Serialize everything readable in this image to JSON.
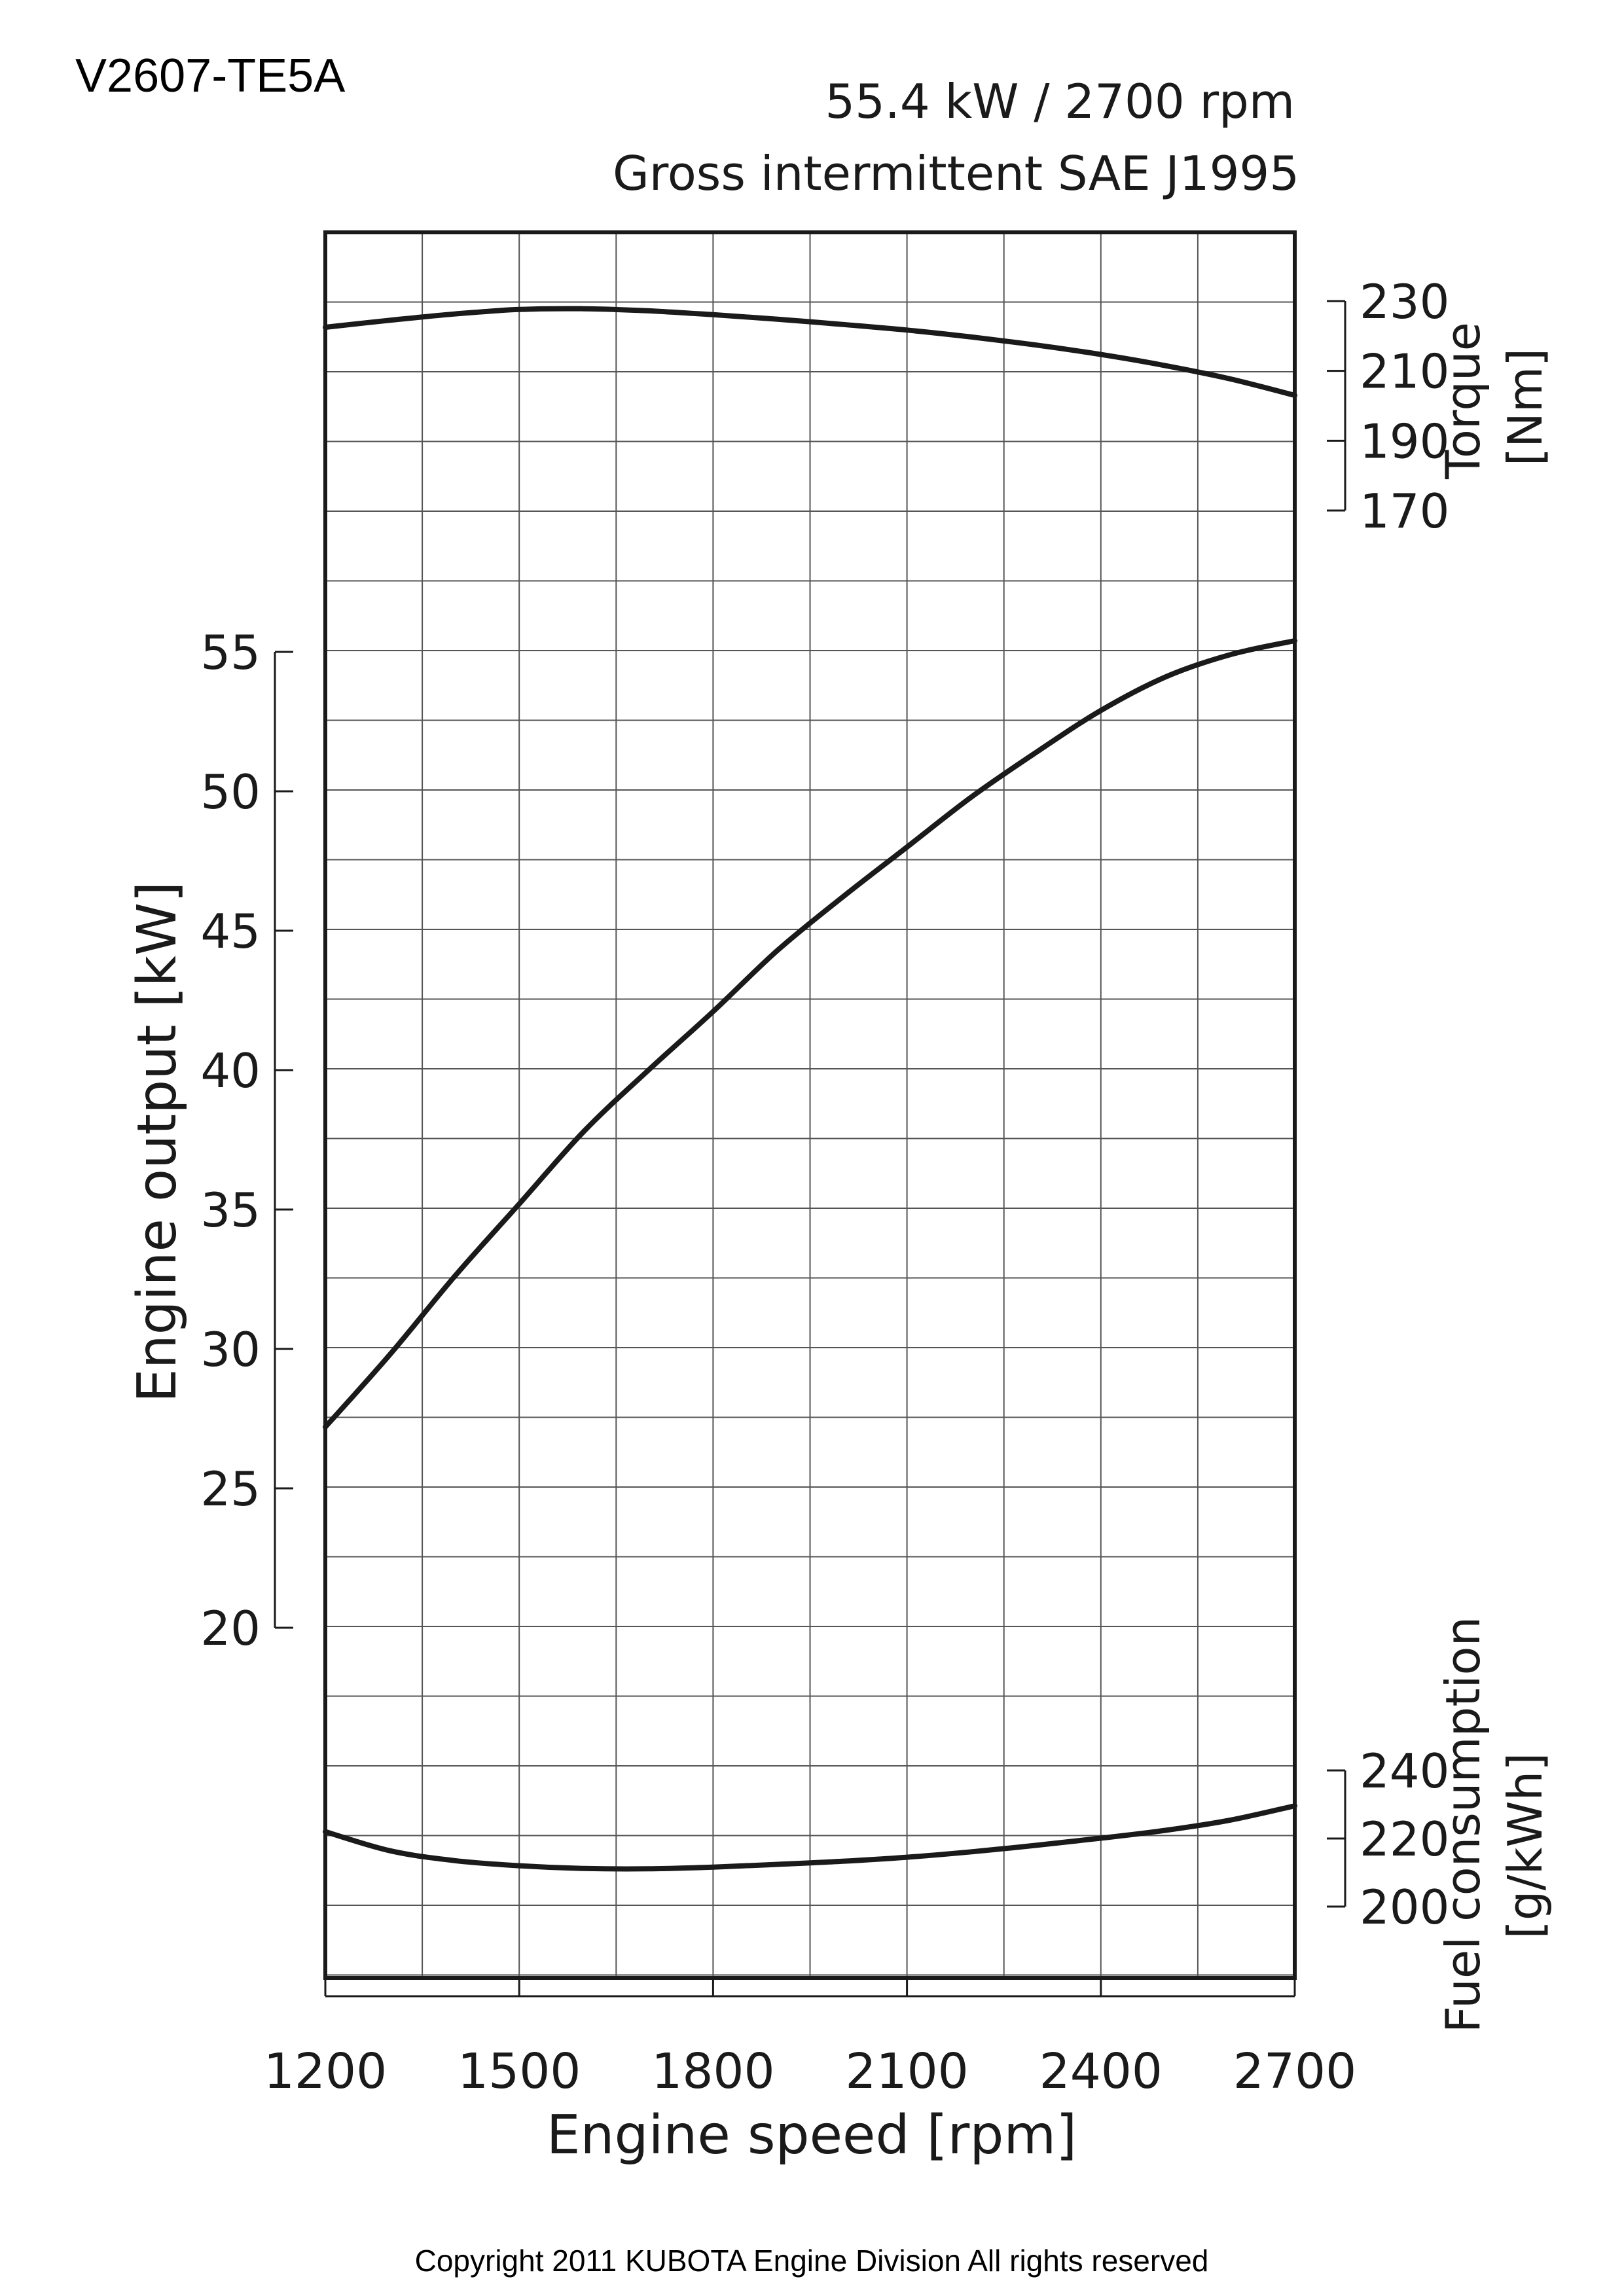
{
  "header": {
    "model": "V2607-TE5A",
    "rating": "55.4 kW / 2700 rpm",
    "standard": "Gross intermittent SAE J1995"
  },
  "footer": {
    "copyright": "Copyright 2011 KUBOTA Engine Division All rights reserved"
  },
  "chart_data": {
    "type": "line",
    "grid": true,
    "x_axis": {
      "label": "Engine speed [rpm]",
      "range": [
        1200,
        2700
      ],
      "ticks": [
        "1200",
        "1500",
        "1800",
        "2100",
        "2400",
        "2700"
      ],
      "tick_values": [
        1200,
        1500,
        1800,
        2100,
        2400,
        2700
      ]
    },
    "output_axis": {
      "label": "Engine output [kW]",
      "range": [
        20,
        55
      ],
      "ticks": [
        "20",
        "25",
        "30",
        "35",
        "40",
        "45",
        "50",
        "55"
      ],
      "tick_values": [
        20,
        25,
        30,
        35,
        40,
        45,
        50,
        55
      ]
    },
    "torque_axis": {
      "label_main": "Torque",
      "label_unit": "[Nm]",
      "range": [
        170,
        230
      ],
      "ticks": [
        "170",
        "190",
        "210",
        "230"
      ],
      "tick_values": [
        170,
        190,
        210,
        230
      ]
    },
    "fuel_axis": {
      "label_main": "Fuel consumption",
      "label_unit": "[g/kWh]",
      "range": [
        200,
        240
      ],
      "ticks": [
        "200",
        "220",
        "240"
      ],
      "tick_values": [
        200,
        220,
        240
      ]
    },
    "series": [
      {
        "axis": "torque",
        "x": [
          1200,
          1300,
          1400,
          1500,
          1600,
          1700,
          1800,
          1900,
          2000,
          2100,
          2200,
          2300,
          2400,
          2500,
          2600,
          2700
        ],
        "y": [
          222.5,
          224.5,
          226.3,
          227.6,
          227.8,
          227.2,
          226.1,
          224.8,
          223.3,
          221.7,
          219.7,
          217.4,
          214.7,
          211.5,
          207.7,
          203.0
        ]
      },
      {
        "axis": "output",
        "x": [
          1200,
          1300,
          1400,
          1500,
          1600,
          1700,
          1800,
          1900,
          2000,
          2100,
          2200,
          2300,
          2400,
          2500,
          2600,
          2700
        ],
        "y": [
          27.2,
          29.8,
          32.6,
          35.2,
          37.8,
          40.0,
          42.1,
          44.3,
          46.2,
          48.0,
          49.8,
          51.4,
          52.9,
          54.1,
          54.9,
          55.4
        ]
      },
      {
        "axis": "fuel",
        "x": [
          1200,
          1300,
          1400,
          1500,
          1600,
          1700,
          1800,
          1900,
          2000,
          2100,
          2200,
          2300,
          2400,
          2500,
          2600,
          2700
        ],
        "y": [
          222.0,
          216.4,
          213.5,
          212.0,
          211.2,
          211.1,
          211.6,
          212.4,
          213.3,
          214.5,
          216.1,
          218.0,
          220.1,
          222.4,
          225.4,
          229.6
        ]
      }
    ]
  }
}
